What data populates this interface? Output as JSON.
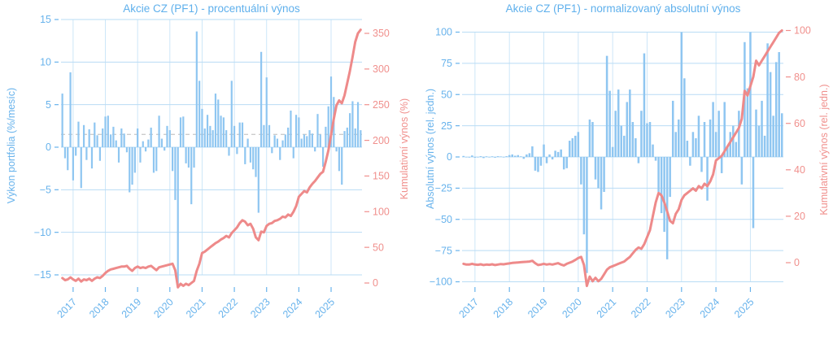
{
  "figure": {
    "background": "#ffffff"
  },
  "colors": {
    "bar": "#8fc6f1",
    "line": "#ee8a8a",
    "grid": "#b9dcf5",
    "year_grid": "#cde6f8",
    "text_blue": "#68b3ec",
    "text_red": "#f0908d",
    "mean_line": "#cccccc"
  },
  "chart_data": [
    {
      "type": "bar",
      "title": "Akcie CZ (PF1) - procentuální výnos",
      "start_month": "2016-09",
      "x_tick_labels": [
        "2017",
        "2018",
        "2019",
        "2020",
        "2021",
        "2022",
        "2023",
        "2024",
        "2025"
      ],
      "y_left": {
        "label": "Výkon portfolia (%/mesíc)",
        "ticks": [
          15,
          10,
          5,
          0,
          -5,
          -10,
          -15
        ],
        "lim": [
          -16.9,
          15.7
        ]
      },
      "y_right": {
        "label": "Kumulativní výnos (%)",
        "ticks": [
          350,
          300,
          250,
          200,
          150,
          100,
          50,
          0
        ]
      },
      "mean_line": 1.5,
      "legend": "off",
      "grid": "on",
      "bars": {
        "name": "monthly_return_pct",
        "values": [
          6.3,
          -1.3,
          -2.7,
          8.8,
          -3.9,
          -1,
          3,
          -4.8,
          2.6,
          -1.5,
          2.1,
          -2.5,
          2.9,
          1.4,
          -1.6,
          2.2,
          3.6,
          3.7,
          1.5,
          2.4,
          0.8,
          -1.8,
          2.2,
          1.6,
          -0.6,
          -5.3,
          -4.4,
          -3,
          2.2,
          -1.8,
          0.7,
          -0.5,
          0.9,
          2.3,
          -3,
          -2.8,
          3.7,
          1,
          -0.4,
          2.5,
          2,
          -2.8,
          -6.2,
          -16.3,
          3.5,
          3.6,
          -1.9,
          -2.4,
          -6.7,
          -2.4,
          13.6,
          7.8,
          4.5,
          2.2,
          3.8,
          2.5,
          2,
          6.3,
          5.6,
          3.7,
          3.5,
          2,
          -1,
          7.8,
          2.5,
          -0.8,
          2.9,
          2.9,
          -2,
          1,
          -1.8,
          -2.6,
          -3.5,
          -7.7,
          11.2,
          2.6,
          8.2,
          2.6,
          -0.7,
          1.4,
          1,
          -1.5,
          0.8,
          1.5,
          2.3,
          4.3,
          -1.3,
          3.8,
          3.5,
          1,
          1.5,
          1.3,
          2,
          1.6,
          -0.5,
          3.9,
          1.5,
          -2.3,
          2.4,
          4.8,
          8.3,
          5.9,
          -0.5,
          -2.8,
          -4.4,
          1.9,
          2.3,
          4,
          5.4,
          2.2,
          5.3,
          2
        ]
      },
      "line": {
        "name": "cumulative_return_pct",
        "axis": "right",
        "values": [
          7,
          4,
          5,
          8,
          5,
          3,
          6,
          2,
          5,
          4,
          6,
          3,
          6,
          8,
          7,
          10,
          14,
          17,
          19,
          20,
          21,
          22,
          23,
          23,
          24,
          20,
          17,
          21,
          23,
          21,
          22,
          21,
          23,
          24,
          21,
          18,
          22,
          23,
          24,
          25,
          26,
          27,
          18,
          -6,
          -1,
          -4,
          -1,
          -3,
          0,
          3,
          17,
          27,
          42,
          44,
          47,
          50,
          53,
          56,
          58,
          61,
          63,
          66,
          64,
          70,
          74,
          78,
          84,
          88,
          86,
          81,
          83,
          76,
          64,
          60,
          72,
          71,
          80,
          83,
          84,
          87,
          88,
          90,
          93,
          92,
          96,
          94,
          100,
          108,
          121,
          125,
          129,
          127,
          134,
          139,
          143,
          148,
          153,
          156,
          170,
          186,
          208,
          230,
          249,
          256,
          252,
          263,
          280,
          297,
          317,
          338,
          350,
          355
        ]
      }
    },
    {
      "type": "bar",
      "title": "Akcie CZ (PF1) - normalizovaný absolutní výnos",
      "start_month": "2016-09",
      "x_tick_labels": [
        "2017",
        "2018",
        "2019",
        "2020",
        "2021",
        "2022",
        "2023",
        "2024",
        "2025"
      ],
      "y_left": {
        "label": "Absolutní výnos (rel. jedn.)",
        "ticks": [
          100,
          75,
          50,
          25,
          0,
          -25,
          -50,
          -75,
          -100
        ],
        "lim": [
          -108,
          104
        ]
      },
      "y_right": {
        "label": "Kumulativní výnos (rel. jedn.)",
        "ticks": [
          100,
          80,
          60,
          40,
          20,
          0
        ]
      },
      "mean_line": null,
      "legend": "off",
      "grid": "on",
      "bars": {
        "name": "normalized_absolute_return",
        "values": [
          0.8,
          -0.3,
          -0.5,
          1.2,
          -0.6,
          -0.3,
          0.6,
          -0.9,
          0.5,
          -0.4,
          0.5,
          -0.6,
          0.6,
          0.4,
          -0.4,
          0.6,
          1.5,
          2,
          1,
          1.5,
          0.5,
          -1.5,
          2,
          3,
          8.5,
          -11,
          -12,
          -7,
          10,
          -5,
          2,
          -2,
          5,
          4,
          6,
          -10,
          -9,
          13,
          15,
          17,
          20,
          -22,
          -62,
          -93,
          30,
          28,
          -18,
          -25,
          -42,
          -28,
          81,
          53,
          8,
          37,
          54,
          25,
          17,
          44,
          54,
          28,
          15,
          -5,
          37,
          83,
          27,
          28,
          10,
          -3,
          -28,
          -45,
          -60,
          -82,
          -32,
          45,
          20,
          30,
          100,
          63,
          13,
          -7,
          20,
          15,
          33,
          -12,
          28,
          -35,
          30,
          44,
          20,
          37,
          -13,
          44,
          9,
          20,
          25,
          12,
          37,
          -22,
          92,
          55,
          100,
          -57,
          38,
          25,
          45,
          17,
          91,
          68,
          33,
          76,
          84,
          35
        ]
      },
      "line": {
        "name": "cumulative_return_rel",
        "axis": "right",
        "values": [
          -0.5,
          -0.8,
          -0.8,
          -0.5,
          -0.8,
          -0.9,
          -0.7,
          -1,
          -0.8,
          -0.9,
          -0.7,
          -1,
          -0.8,
          -0.6,
          -0.7,
          -0.5,
          -0.3,
          -0.1,
          0,
          0.1,
          0.2,
          0.3,
          0.4,
          0.5,
          0.8,
          -0.2,
          -1,
          -0.8,
          -0.5,
          -0.8,
          -0.6,
          -0.8,
          -0.5,
          -0.2,
          -0.8,
          -1.2,
          -0.5,
          0,
          0.5,
          1.2,
          2,
          2.5,
          -1,
          -10,
          -6,
          -8,
          -6.5,
          -8,
          -7,
          -5,
          -3,
          -2,
          -1.5,
          -1,
          -0.5,
          0,
          0.5,
          1.5,
          2.5,
          4,
          5.5,
          6.5,
          6,
          8,
          11,
          14,
          20,
          26,
          30,
          29,
          26,
          22,
          18,
          17,
          21,
          23,
          27,
          29,
          30,
          31,
          32,
          31,
          33,
          32,
          34,
          33,
          35,
          38,
          44,
          45,
          46,
          48,
          50,
          52,
          54,
          56,
          58,
          62,
          74,
          72,
          76,
          80,
          87,
          85,
          87,
          89,
          91,
          93,
          95,
          97,
          99,
          100
        ]
      }
    }
  ]
}
